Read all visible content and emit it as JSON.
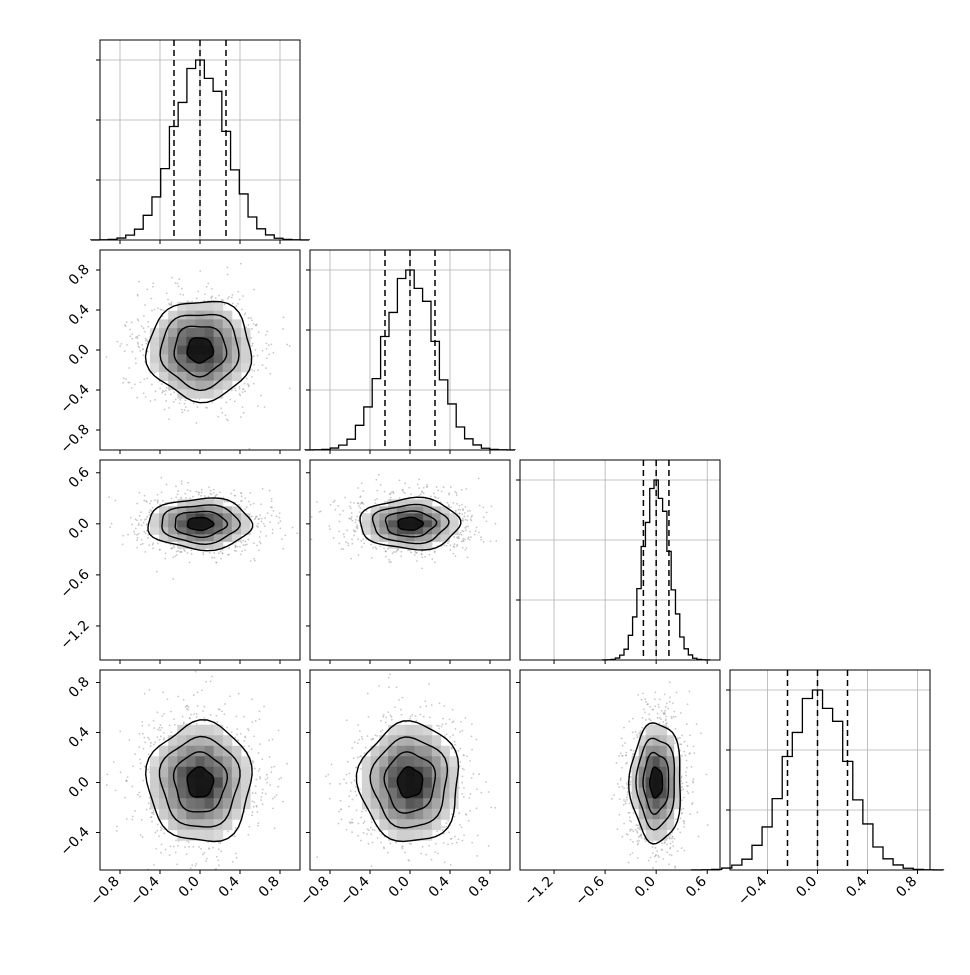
{
  "chart_data": {
    "type": "corner",
    "parameters": 4,
    "grid": true,
    "colors": {
      "line": "#000000",
      "grid": "#b0b0b0",
      "points": "#9a9a9a",
      "frame": "#000000"
    },
    "diag_ranges": [
      [
        -1.0,
        1.0
      ],
      [
        -1.0,
        1.0
      ],
      [
        -1.6,
        0.75
      ],
      [
        -0.7,
        0.9
      ]
    ],
    "diag_ticks": [
      [
        -0.8,
        -0.4,
        0.0,
        0.4,
        0.8
      ],
      [
        -0.8,
        -0.4,
        0.0,
        0.4,
        0.8
      ],
      [
        -1.2,
        -0.6,
        0.0,
        0.6
      ],
      [
        -0.4,
        0.0,
        0.4,
        0.8
      ]
    ],
    "tick_labels": {
      "x": [
        [
          "−0.8",
          "−0.4",
          "0.0",
          "0.4",
          "0.8"
        ],
        [
          "−0.8",
          "−0.4",
          "0.0",
          "0.4",
          "0.8"
        ],
        [
          "−1.2",
          "−0.6",
          "0.0",
          "0.6"
        ],
        [
          "−0.4",
          "0.0",
          "0.4",
          "0.8"
        ]
      ],
      "y": {
        "1": [
          "0.8",
          "0.4",
          "0.0",
          "−0.4",
          "−0.8"
        ],
        "2": [
          "0.6",
          "0.0",
          "−0.6",
          "−1.2"
        ],
        "3": [
          "0.8",
          "0.4",
          "0.0",
          "−0.4"
        ]
      }
    },
    "diagonal": [
      {
        "param": 1,
        "sigma": 0.26,
        "quantiles": [
          -0.26,
          0.0,
          0.26
        ]
      },
      {
        "param": 2,
        "sigma": 0.25,
        "quantiles": [
          -0.25,
          0.0,
          0.25
        ]
      },
      {
        "param": 3,
        "sigma": 0.15,
        "quantiles": [
          -0.15,
          0.0,
          0.15
        ]
      },
      {
        "param": 4,
        "sigma": 0.24,
        "quantiles": [
          -0.24,
          0.0,
          0.24
        ]
      }
    ],
    "pairs": [
      {
        "row": 1,
        "col": 0,
        "sx": 0.26,
        "sy": 0.25,
        "rho": 0.0
      },
      {
        "row": 2,
        "col": 0,
        "sx": 0.26,
        "sy": 0.15,
        "rho": 0.0
      },
      {
        "row": 2,
        "col": 1,
        "sx": 0.25,
        "sy": 0.15,
        "rho": 0.0
      },
      {
        "row": 3,
        "col": 0,
        "sx": 0.26,
        "sy": 0.24,
        "rho": 0.0
      },
      {
        "row": 3,
        "col": 1,
        "sx": 0.25,
        "sy": 0.24,
        "rho": 0.0
      },
      {
        "row": 3,
        "col": 2,
        "sx": 0.15,
        "sy": 0.24,
        "rho": 0.0
      }
    ],
    "contour_levels_sigma": [
      0.5,
      1.0,
      1.5,
      2.0
    ]
  }
}
